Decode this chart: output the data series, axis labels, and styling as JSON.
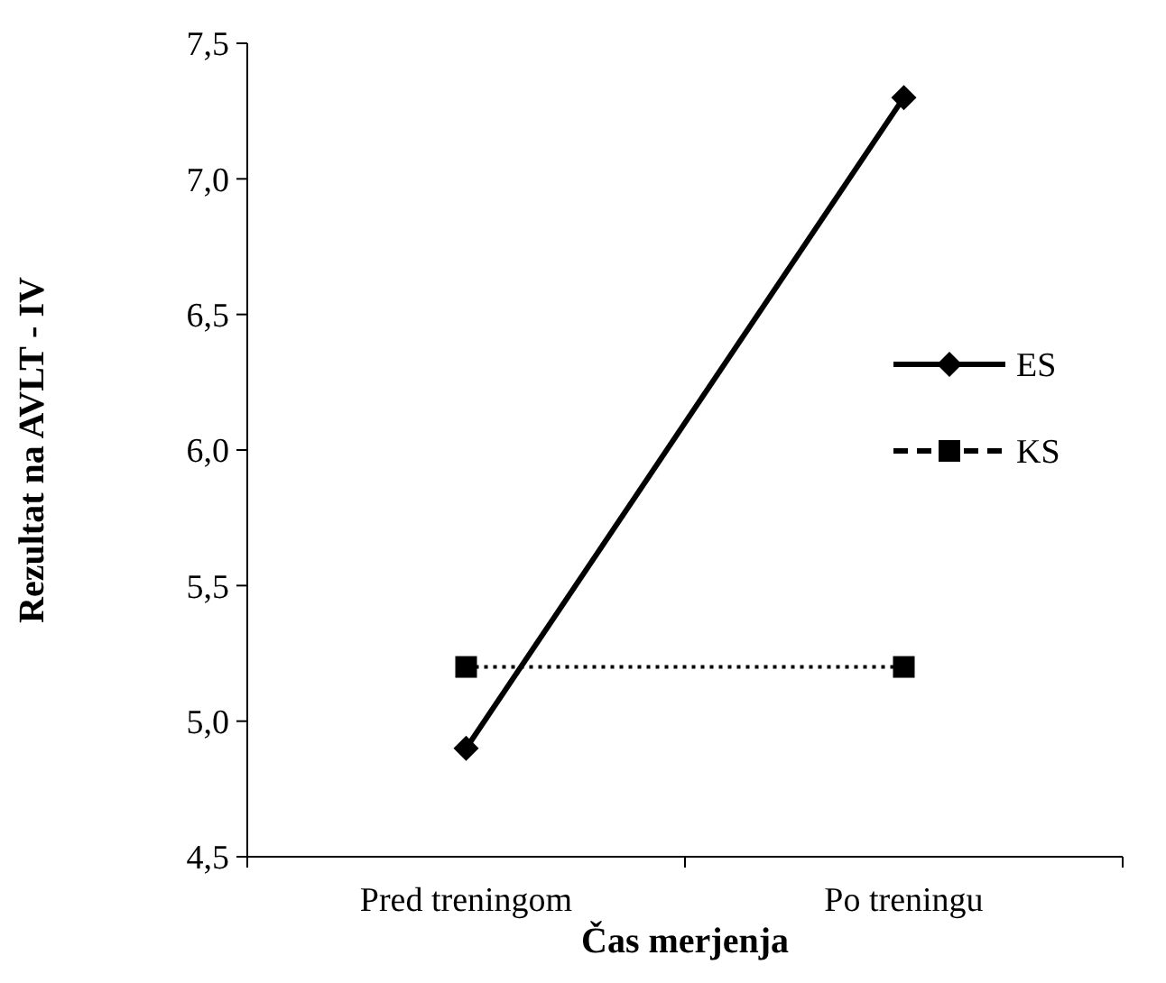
{
  "chart_data": {
    "type": "line",
    "xlabel": "Čas merjenja",
    "ylabel": "Rezultat na AVLT - IV",
    "categories": [
      "Pred treningom",
      "Po treningu"
    ],
    "series": [
      {
        "name": "ES",
        "color": "#000000",
        "values": [
          4.9,
          7.3
        ],
        "marker": "diamond",
        "line_style": "solid"
      },
      {
        "name": "KS",
        "color": "#000000",
        "values": [
          5.2,
          5.2
        ],
        "marker": "square",
        "line_style": "dotted"
      }
    ],
    "ylim": [
      4.5,
      7.5
    ],
    "yticks": [
      {
        "value": 4.5,
        "label": "4,5"
      },
      {
        "value": 5,
        "label": "5,0"
      },
      {
        "value": 5.5,
        "label": "5,5"
      },
      {
        "value": 6,
        "label": "6,0"
      },
      {
        "value": 6.5,
        "label": "6,5"
      },
      {
        "value": 7,
        "label": "7,0"
      },
      {
        "value": 7.5,
        "label": "7,5"
      }
    ],
    "grid": false,
    "legend": "right"
  }
}
